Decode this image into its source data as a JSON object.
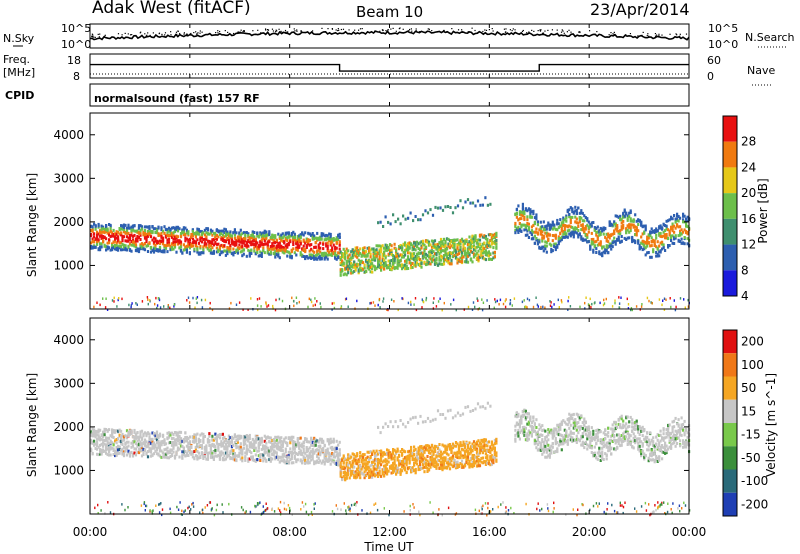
{
  "header": {
    "station": "Adak West (fitACF)",
    "beam": "Beam 10",
    "date": "23/Apr/2014"
  },
  "chart_data": [
    {
      "type": "line",
      "title": "",
      "ylabel": "N.Sky",
      "y2label": "N.Search",
      "ytick_labels": [
        "10^5",
        "10^0"
      ],
      "y2tick_labels": [
        "10^5",
        "10^0"
      ],
      "note": "",
      "x_hours": [
        0,
        24
      ],
      "x_ticks": [
        "00:00",
        "04:00",
        "08:00",
        "12:00",
        "16:00",
        "20:00",
        "00:00"
      ]
    },
    {
      "type": "line",
      "ylabel_lines": [
        "Freq.",
        "[MHz]"
      ],
      "y2label": "Nave",
      "ylim": [
        8,
        18
      ],
      "ytick_labels": [
        "18",
        "8"
      ],
      "y2tick_labels": [
        "60",
        "0"
      ],
      "freq_segments": [
        {
          "from": 0,
          "to": 10,
          "value": 13.6
        },
        {
          "from": 10,
          "to": 18,
          "value": 10.9
        },
        {
          "from": 18,
          "to": 24,
          "value": 13.6
        }
      ]
    },
    {
      "type": "text",
      "ylabel": "CPID",
      "label": "normalsound (fast) 157 RF"
    },
    {
      "type": "heatmap",
      "ylabel": "Slant Range [km]",
      "ylim": [
        0,
        4500
      ],
      "yticks": [
        "1000",
        "2000",
        "3000",
        "4000"
      ],
      "colorbar_label": "Power [dB]",
      "colorbar_ticks": [
        "4",
        "8",
        "12",
        "16",
        "20",
        "24",
        "28"
      ],
      "colors": [
        "#1a1adc",
        "#2d5fb0",
        "#3f8f6f",
        "#6cbf4a",
        "#e6c818",
        "#f07a10",
        "#e81010"
      ]
    },
    {
      "type": "heatmap",
      "ylabel": "Slant Range [km]",
      "ylim": [
        0,
        4500
      ],
      "yticks": [
        "1000",
        "2000",
        "3000",
        "4000"
      ],
      "xlabel": "Time UT",
      "colorbar_label": "Velocity [m s^-1]",
      "colorbar_ticks": [
        "200",
        "100",
        "50",
        "15",
        "-15",
        "-50",
        "-100",
        "-200"
      ],
      "colors": [
        "#1f3fb4",
        "#2a6a7a",
        "#3b8f3b",
        "#79c94b",
        "#c6c6c6",
        "#f5a623",
        "#f07818",
        "#e01010"
      ]
    }
  ]
}
